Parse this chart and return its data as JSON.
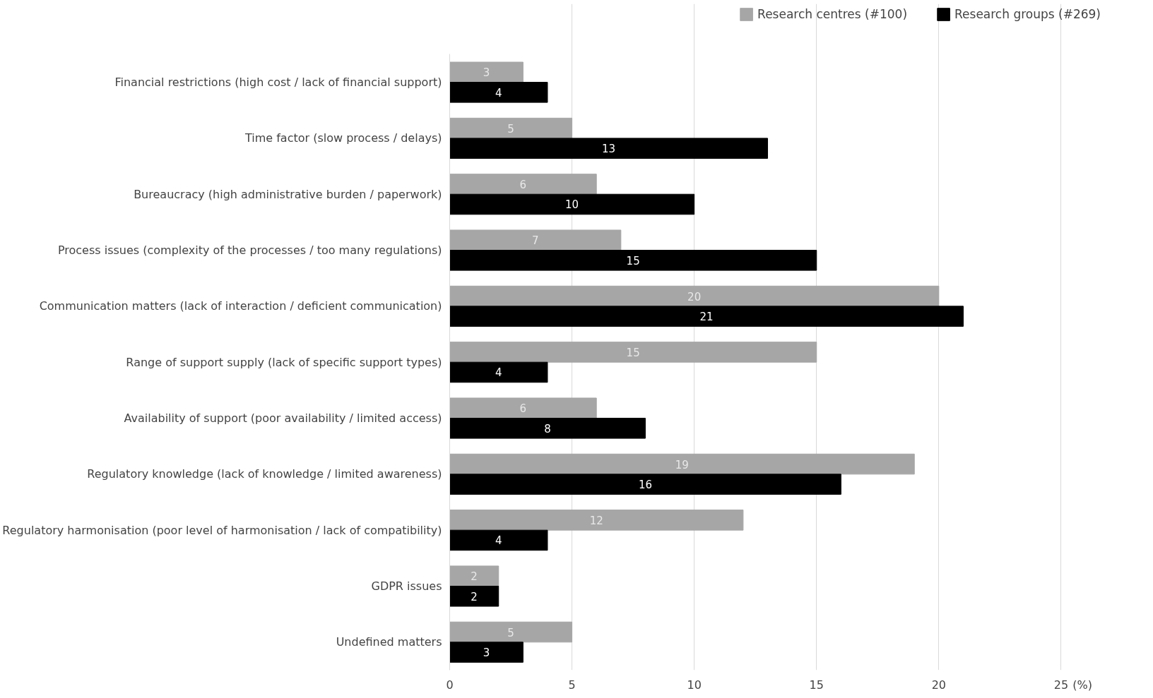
{
  "chart_data": {
    "type": "bar",
    "orientation": "horizontal",
    "xlabel": "(%)",
    "categories": [
      "Financial restrictions (high cost / lack of financial support)",
      "Time factor (slow process / delays)",
      "Bureaucracy (high administrative burden / paperwork)",
      "Process issues (complexity of the processes / too many regulations)",
      "Communication matters (lack of interaction / deficient communication)",
      "Range of support supply (lack of specific support types)",
      "Availability of support (poor availability / limited access)",
      "Regulatory knowledge (lack of knowledge / limited awareness)",
      "Regulatory harmonisation (poor level of harmonisation / lack of compatibility)",
      "GDPR issues",
      "Undefined matters"
    ],
    "series": [
      {
        "name": "Research centres (#100)",
        "color": "#a6a6a6",
        "values": [
          3,
          5,
          6,
          7,
          20,
          15,
          6,
          19,
          12,
          2,
          5
        ]
      },
      {
        "name": "Research groups (#269)",
        "color": "#000000",
        "values": [
          4,
          13,
          10,
          15,
          21,
          4,
          8,
          16,
          4,
          2,
          3
        ]
      }
    ],
    "xlim": [
      0,
      25
    ],
    "xticks": [
      0,
      5,
      10,
      15,
      20,
      25
    ],
    "grid": "x",
    "legend": "top right",
    "data_labels": true
  }
}
